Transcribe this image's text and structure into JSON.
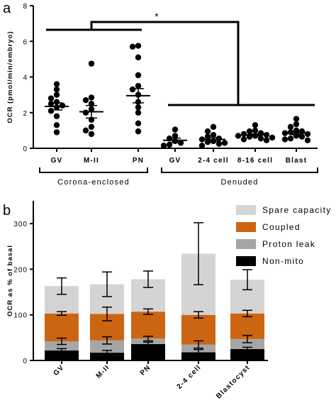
{
  "chart_data": [
    {
      "panel": "a",
      "type": "scatter",
      "ylabel": "OCR (pmol/min/embryo)",
      "ylim": [
        0,
        8
      ],
      "yticks": [
        "0",
        "2",
        "4",
        "6",
        "8"
      ],
      "categories": [
        "GV",
        "M-II",
        "PN",
        "GV",
        "2-4 cell",
        "8-16 cell",
        "Blast"
      ],
      "groups": [
        {
          "label": "Corona-enclosed",
          "categories": [
            "GV",
            "M-II",
            "PN"
          ]
        },
        {
          "label": "Denuded",
          "categories": [
            "GV",
            "2-4 cell",
            "8-16 cell",
            "Blast"
          ]
        }
      ],
      "significance": "*",
      "series": [
        {
          "category": "GV",
          "group": "Corona-enclosed",
          "mean": 2.35,
          "sem": 0.2,
          "points": [
            3.6,
            3.3,
            3.0,
            2.8,
            2.6,
            2.5,
            2.4,
            2.3,
            2.1,
            1.8,
            1.3,
            0.9
          ]
        },
        {
          "category": "M-II",
          "group": "Corona-enclosed",
          "mean": 2.05,
          "sem": 0.35,
          "points": [
            4.75,
            2.85,
            2.7,
            2.5,
            2.2,
            2.0,
            1.6,
            1.2,
            1.0,
            0.8
          ]
        },
        {
          "category": "PN",
          "group": "Corona-enclosed",
          "mean": 2.95,
          "sem": 0.4,
          "points": [
            5.75,
            5.7,
            5.1,
            4.1,
            3.5,
            3.3,
            3.0,
            2.6,
            2.3,
            2.0,
            1.4,
            0.95
          ]
        },
        {
          "category": "GV",
          "group": "Denuded",
          "mean": 0.45,
          "sem": 0.12,
          "points": [
            1.05,
            0.7,
            0.55,
            0.4,
            0.3,
            0.2,
            0.15
          ]
        },
        {
          "category": "2-4 cell",
          "group": "Denuded",
          "mean": 0.5,
          "sem": 0.1,
          "points": [
            1.2,
            0.95,
            0.75,
            0.65,
            0.55,
            0.5,
            0.4,
            0.35,
            0.3,
            0.25,
            0.15
          ]
        },
        {
          "category": "8-16 cell",
          "group": "Denuded",
          "mean": 0.75,
          "sem": 0.06,
          "points": [
            1.3,
            1.0,
            0.95,
            0.85,
            0.8,
            0.75,
            0.7,
            0.7,
            0.65,
            0.6,
            0.55,
            0.5,
            0.45
          ]
        },
        {
          "category": "Blast",
          "group": "Denuded",
          "mean": 0.85,
          "sem": 0.08,
          "points": [
            1.65,
            1.35,
            1.2,
            1.0,
            0.95,
            0.9,
            0.85,
            0.8,
            0.7,
            0.65,
            0.55,
            0.5,
            0.45
          ]
        }
      ]
    },
    {
      "panel": "b",
      "type": "bar",
      "stacked": true,
      "ylabel": "OCR as % of basal",
      "ylim": [
        0,
        350
      ],
      "yticks": [
        "0",
        "100",
        "200",
        "300"
      ],
      "categories": [
        "GV",
        "M-II",
        "PN",
        "2-4 cell",
        "Blastocyst"
      ],
      "legend_position": "top-right",
      "series": [
        {
          "name": "Non-mito",
          "color": "#000000",
          "values": [
            22,
            17,
            36,
            18,
            25
          ],
          "errors": [
            4,
            5,
            4,
            6,
            4
          ]
        },
        {
          "name": "Proton leak",
          "color": "#a6a6a6",
          "values": [
            20,
            27,
            12,
            17,
            22
          ],
          "errors": [
            7,
            8,
            5,
            8,
            8
          ]
        },
        {
          "name": "Coupled",
          "color": "#cc6511",
          "values": [
            61,
            58,
            59,
            65,
            56
          ],
          "errors": [
            4,
            15,
            6,
            7,
            7
          ]
        },
        {
          "name": "Spare capacity",
          "color": "#d4d4d4",
          "values": [
            60,
            65,
            71,
            134,
            74
          ],
          "errors": [
            18,
            27,
            18,
            68,
            22
          ]
        }
      ],
      "legend_order": [
        "Spare capacity",
        "Coupled",
        "Proton leak",
        "Non-mito"
      ]
    }
  ],
  "panel_letters": {
    "a": "a",
    "b": "b"
  }
}
